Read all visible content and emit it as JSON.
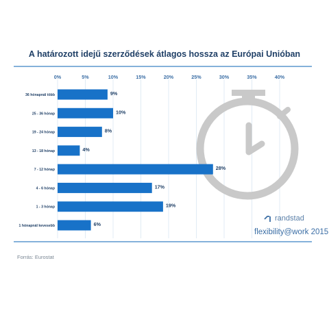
{
  "chart_data": {
    "type": "bar",
    "orientation": "horizontal",
    "title": "A határozott idejű szerződések átlagos hossza az Európai Unióban",
    "categories": [
      "36 hónapnál több",
      "25 - 36 hónap",
      "19 - 24 hónap",
      "13 - 18 hónap",
      "7 - 12 hónap",
      "4 - 6 hónap",
      "1 - 3 hónap",
      "1 hónapnál kevesebb"
    ],
    "values": [
      9,
      10,
      8,
      4,
      28,
      17,
      19,
      6
    ],
    "value_labels": [
      "9%",
      "10%",
      "8%",
      "4%",
      "28%",
      "17%",
      "19%",
      "6%"
    ],
    "xticks": [
      "0%",
      "5%",
      "10%",
      "15%",
      "20%",
      "25%",
      "30%",
      "35%",
      "40%"
    ],
    "xlim": [
      0,
      40
    ],
    "grid": true,
    "bar_color": "#1872c8"
  },
  "brand": {
    "name": "randstad",
    "tagline": "flexibility@work 2015",
    "color": "#3b6ea5"
  },
  "source": "Forrás: Eurostat",
  "watermark_icon": "stopwatch-icon"
}
